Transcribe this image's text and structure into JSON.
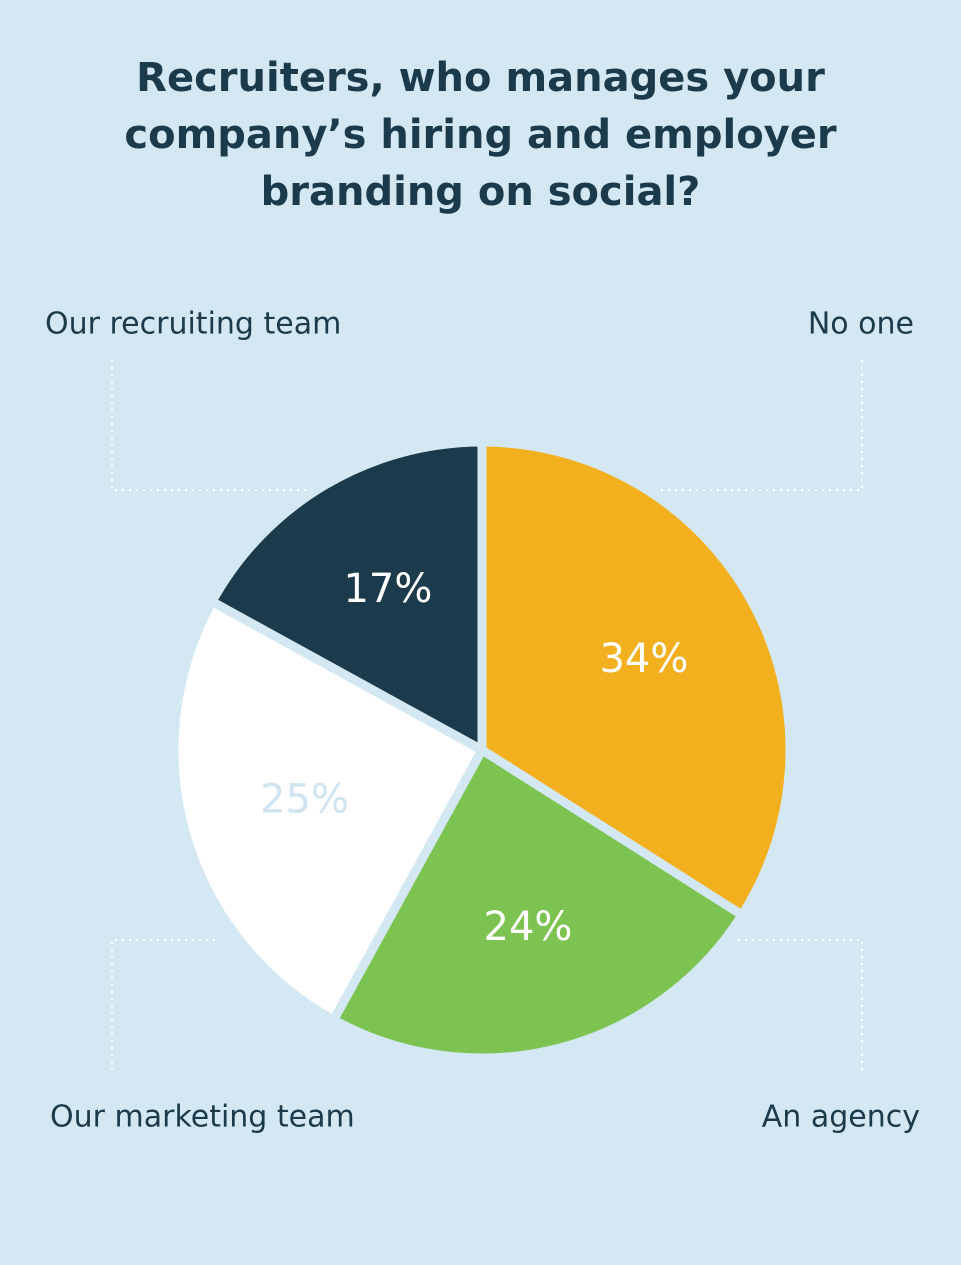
{
  "chart_data": {
    "type": "pie",
    "title": "Recruiters, who manages your company’s hiring and employer branding on social?",
    "categories": [
      "No one",
      "An agency",
      "Our marketing team",
      "Our recruiting team"
    ],
    "values": [
      34,
      24,
      25,
      17
    ],
    "value_labels": [
      "34%",
      "24%",
      "25%",
      "17%"
    ],
    "colors": [
      "#f2b01e",
      "#7dc351",
      "#ffffff",
      "#1b3a4b"
    ]
  }
}
